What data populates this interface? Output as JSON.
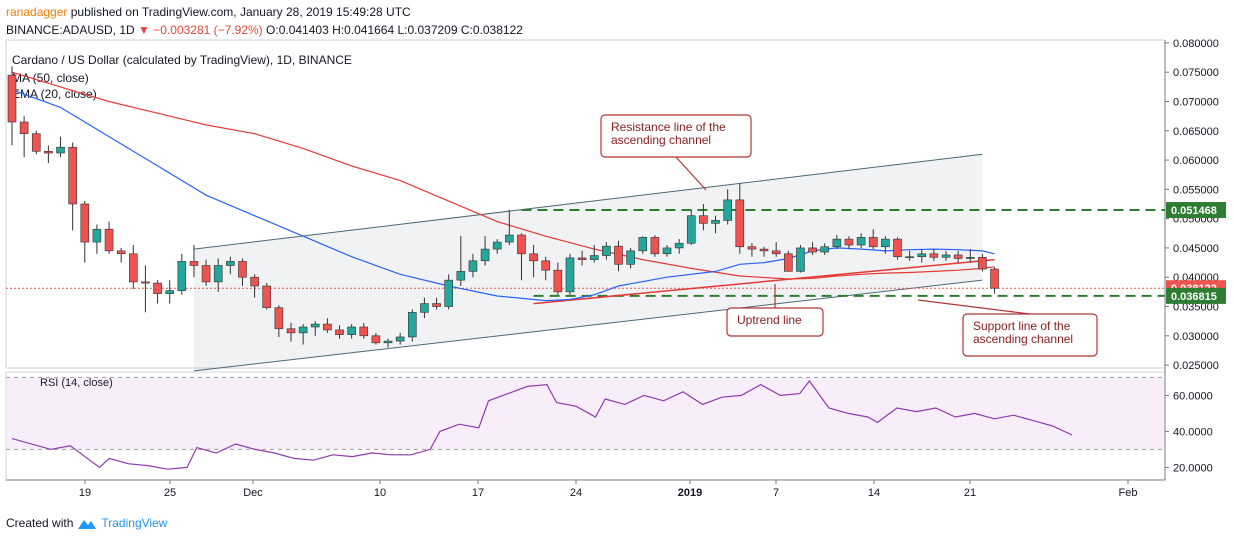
{
  "header": {
    "publisher_user": "ranadagger",
    "publisher_rest": " published on TradingView.com, January 28, 2019 15:49:28 UTC",
    "symbol": "BINANCE:ADAUSD, 1D",
    "last": "0.038122",
    "change": "▼ −0.003281 (−7.92%)",
    "ohlc": "O:0.041403 H:0.041664 L:0.037209 C:0.038122"
  },
  "legend": {
    "title": "Cardano / US Dollar (calculated by TradingView), 1D, BINANCE",
    "ma": "MA (50, close)",
    "ema": "EMA (20, close)",
    "rsi": "RSI (14, close)"
  },
  "annotations": {
    "resistance": [
      "Resistance line of the",
      "ascending channel"
    ],
    "uptrend": "Uptrend line",
    "support": [
      "Support line of the",
      "ascending channel"
    ]
  },
  "footer": {
    "created_with": "Created with",
    "brand": "TradingView"
  },
  "colors": {
    "up": "#26a69a",
    "down": "#ef5350",
    "ma50": "#e53935",
    "ema20": "#2962ff",
    "rsi": "#8e3bb0",
    "level_line": "#2e7d32",
    "annotation_border": "#b03636"
  },
  "chart_data": [
    {
      "type": "candlestick",
      "title": "Cardano / US Dollar (calculated by TradingView), 1D, BINANCE",
      "x_ticks": [
        "19",
        "25",
        "Dec",
        "10",
        "17",
        "24",
        "2019",
        "7",
        "14",
        "21",
        "Feb"
      ],
      "y_ticks": [
        "0.025000",
        "0.030000",
        "0.035000",
        "0.040000",
        "0.045000",
        "0.050000",
        "0.055000",
        "0.060000",
        "0.065000",
        "0.070000",
        "0.075000",
        "0.080000"
      ],
      "ylim": [
        0.0245,
        0.0805
      ],
      "price_labels": {
        "last": "0.038122",
        "resistance_level": "0.051468",
        "support_level": "0.036815"
      },
      "levels": {
        "resistance": 0.051468,
        "support": 0.036815,
        "last": 0.038122
      },
      "candles": [
        {
          "o": 0.0745,
          "h": 0.076,
          "l": 0.0625,
          "c": 0.0665
        },
        {
          "o": 0.0665,
          "h": 0.0675,
          "l": 0.0605,
          "c": 0.0645
        },
        {
          "o": 0.0645,
          "h": 0.065,
          "l": 0.061,
          "c": 0.0615
        },
        {
          "o": 0.0615,
          "h": 0.0625,
          "l": 0.0595,
          "c": 0.0612
        },
        {
          "o": 0.0612,
          "h": 0.064,
          "l": 0.0605,
          "c": 0.0622
        },
        {
          "o": 0.0622,
          "h": 0.063,
          "l": 0.048,
          "c": 0.0525
        },
        {
          "o": 0.0525,
          "h": 0.053,
          "l": 0.0425,
          "c": 0.046
        },
        {
          "o": 0.046,
          "h": 0.049,
          "l": 0.044,
          "c": 0.0482
        },
        {
          "o": 0.0482,
          "h": 0.0495,
          "l": 0.044,
          "c": 0.0445
        },
        {
          "o": 0.0445,
          "h": 0.045,
          "l": 0.0425,
          "c": 0.044
        },
        {
          "o": 0.044,
          "h": 0.0455,
          "l": 0.038,
          "c": 0.0392
        },
        {
          "o": 0.0392,
          "h": 0.042,
          "l": 0.034,
          "c": 0.039
        },
        {
          "o": 0.039,
          "h": 0.0395,
          "l": 0.0355,
          "c": 0.0372
        },
        {
          "o": 0.0372,
          "h": 0.0395,
          "l": 0.0355,
          "c": 0.0377
        },
        {
          "o": 0.0377,
          "h": 0.044,
          "l": 0.037,
          "c": 0.0427
        },
        {
          "o": 0.0427,
          "h": 0.0455,
          "l": 0.04,
          "c": 0.042
        },
        {
          "o": 0.042,
          "h": 0.043,
          "l": 0.0385,
          "c": 0.0392
        },
        {
          "o": 0.0392,
          "h": 0.0432,
          "l": 0.0375,
          "c": 0.042
        },
        {
          "o": 0.042,
          "h": 0.0435,
          "l": 0.0405,
          "c": 0.0427
        },
        {
          "o": 0.0427,
          "h": 0.0432,
          "l": 0.0385,
          "c": 0.04
        },
        {
          "o": 0.04,
          "h": 0.0405,
          "l": 0.0365,
          "c": 0.0385
        },
        {
          "o": 0.0385,
          "h": 0.039,
          "l": 0.0345,
          "c": 0.0348
        },
        {
          "o": 0.0348,
          "h": 0.0352,
          "l": 0.0298,
          "c": 0.0312
        },
        {
          "o": 0.0312,
          "h": 0.0322,
          "l": 0.029,
          "c": 0.0305
        },
        {
          "o": 0.0305,
          "h": 0.032,
          "l": 0.0285,
          "c": 0.0315
        },
        {
          "o": 0.0315,
          "h": 0.0325,
          "l": 0.03,
          "c": 0.032
        },
        {
          "o": 0.032,
          "h": 0.033,
          "l": 0.0305,
          "c": 0.031
        },
        {
          "o": 0.031,
          "h": 0.0318,
          "l": 0.0295,
          "c": 0.0302
        },
        {
          "o": 0.0302,
          "h": 0.032,
          "l": 0.0295,
          "c": 0.0315
        },
        {
          "o": 0.0315,
          "h": 0.0322,
          "l": 0.0295,
          "c": 0.03
        },
        {
          "o": 0.03,
          "h": 0.0305,
          "l": 0.0285,
          "c": 0.0288
        },
        {
          "o": 0.0288,
          "h": 0.0295,
          "l": 0.028,
          "c": 0.0291
        },
        {
          "o": 0.0291,
          "h": 0.0305,
          "l": 0.0285,
          "c": 0.0298
        },
        {
          "o": 0.0298,
          "h": 0.0345,
          "l": 0.029,
          "c": 0.034
        },
        {
          "o": 0.034,
          "h": 0.0365,
          "l": 0.033,
          "c": 0.0355
        },
        {
          "o": 0.0355,
          "h": 0.0365,
          "l": 0.0345,
          "c": 0.035
        },
        {
          "o": 0.035,
          "h": 0.0405,
          "l": 0.0345,
          "c": 0.0395
        },
        {
          "o": 0.0395,
          "h": 0.047,
          "l": 0.0385,
          "c": 0.041
        },
        {
          "o": 0.041,
          "h": 0.044,
          "l": 0.04,
          "c": 0.0428
        },
        {
          "o": 0.0428,
          "h": 0.047,
          "l": 0.042,
          "c": 0.0448
        },
        {
          "o": 0.0448,
          "h": 0.0465,
          "l": 0.044,
          "c": 0.046
        },
        {
          "o": 0.046,
          "h": 0.0515,
          "l": 0.0455,
          "c": 0.0472
        },
        {
          "o": 0.0472,
          "h": 0.0475,
          "l": 0.0395,
          "c": 0.044
        },
        {
          "o": 0.044,
          "h": 0.0455,
          "l": 0.04,
          "c": 0.0428
        },
        {
          "o": 0.0428,
          "h": 0.0435,
          "l": 0.0395,
          "c": 0.0412
        },
        {
          "o": 0.0412,
          "h": 0.0425,
          "l": 0.037,
          "c": 0.0375
        },
        {
          "o": 0.0375,
          "h": 0.044,
          "l": 0.037,
          "c": 0.0433
        },
        {
          "o": 0.0433,
          "h": 0.0445,
          "l": 0.042,
          "c": 0.043
        },
        {
          "o": 0.043,
          "h": 0.0455,
          "l": 0.0425,
          "c": 0.0437
        },
        {
          "o": 0.0437,
          "h": 0.046,
          "l": 0.043,
          "c": 0.0453
        },
        {
          "o": 0.0453,
          "h": 0.0462,
          "l": 0.041,
          "c": 0.0422
        },
        {
          "o": 0.0422,
          "h": 0.045,
          "l": 0.0415,
          "c": 0.0445
        },
        {
          "o": 0.0445,
          "h": 0.047,
          "l": 0.044,
          "c": 0.0468
        },
        {
          "o": 0.0468,
          "h": 0.0472,
          "l": 0.0435,
          "c": 0.044
        },
        {
          "o": 0.044,
          "h": 0.0455,
          "l": 0.0435,
          "c": 0.045
        },
        {
          "o": 0.045,
          "h": 0.0465,
          "l": 0.044,
          "c": 0.0458
        },
        {
          "o": 0.0458,
          "h": 0.0515,
          "l": 0.0455,
          "c": 0.0505
        },
        {
          "o": 0.0505,
          "h": 0.0525,
          "l": 0.048,
          "c": 0.0492
        },
        {
          "o": 0.0492,
          "h": 0.0505,
          "l": 0.0475,
          "c": 0.0497
        },
        {
          "o": 0.0497,
          "h": 0.055,
          "l": 0.049,
          "c": 0.0532
        },
        {
          "o": 0.0532,
          "h": 0.056,
          "l": 0.044,
          "c": 0.0452
        },
        {
          "o": 0.0452,
          "h": 0.0458,
          "l": 0.0435,
          "c": 0.0448
        },
        {
          "o": 0.0448,
          "h": 0.0452,
          "l": 0.0435,
          "c": 0.0445
        },
        {
          "o": 0.0445,
          "h": 0.046,
          "l": 0.0435,
          "c": 0.044
        },
        {
          "o": 0.044,
          "h": 0.0445,
          "l": 0.041,
          "c": 0.041
        },
        {
          "o": 0.041,
          "h": 0.0455,
          "l": 0.0408,
          "c": 0.045
        },
        {
          "o": 0.045,
          "h": 0.046,
          "l": 0.0438,
          "c": 0.0443
        },
        {
          "o": 0.0443,
          "h": 0.0458,
          "l": 0.0438,
          "c": 0.0452
        },
        {
          "o": 0.0452,
          "h": 0.0472,
          "l": 0.0448,
          "c": 0.0465
        },
        {
          "o": 0.0465,
          "h": 0.047,
          "l": 0.0448,
          "c": 0.0455
        },
        {
          "o": 0.0455,
          "h": 0.0475,
          "l": 0.045,
          "c": 0.0468
        },
        {
          "o": 0.0468,
          "h": 0.0482,
          "l": 0.0448,
          "c": 0.0452
        },
        {
          "o": 0.0452,
          "h": 0.047,
          "l": 0.044,
          "c": 0.0465
        },
        {
          "o": 0.0465,
          "h": 0.0468,
          "l": 0.043,
          "c": 0.0435
        },
        {
          "o": 0.0435,
          "h": 0.0445,
          "l": 0.0428,
          "c": 0.0435
        },
        {
          "o": 0.0435,
          "h": 0.0448,
          "l": 0.0425,
          "c": 0.044
        },
        {
          "o": 0.044,
          "h": 0.0448,
          "l": 0.0428,
          "c": 0.0434
        },
        {
          "o": 0.0434,
          "h": 0.0445,
          "l": 0.0428,
          "c": 0.0438
        },
        {
          "o": 0.0438,
          "h": 0.0445,
          "l": 0.0425,
          "c": 0.0432
        },
        {
          "o": 0.0432,
          "h": 0.0448,
          "l": 0.0425,
          "c": 0.0434
        },
        {
          "o": 0.0434,
          "h": 0.044,
          "l": 0.041,
          "c": 0.0414
        },
        {
          "o": 0.041403,
          "h": 0.041664,
          "l": 0.037209,
          "c": 0.038122
        }
      ],
      "ma50": [
        [
          0,
          0.075
        ],
        [
          4,
          0.0725
        ],
        [
          8,
          0.07
        ],
        [
          12,
          0.068
        ],
        [
          16,
          0.066
        ],
        [
          20,
          0.0645
        ],
        [
          24,
          0.062
        ],
        [
          28,
          0.059
        ],
        [
          32,
          0.0565
        ],
        [
          36,
          0.053
        ],
        [
          40,
          0.0495
        ],
        [
          44,
          0.047
        ],
        [
          48,
          0.0448
        ],
        [
          52,
          0.043
        ],
        [
          56,
          0.0415
        ],
        [
          60,
          0.0402
        ],
        [
          64,
          0.0397
        ],
        [
          66,
          0.0398
        ],
        [
          68,
          0.0402
        ],
        [
          70,
          0.0405
        ],
        [
          72,
          0.0407
        ],
        [
          74,
          0.0408
        ],
        [
          76,
          0.041
        ],
        [
          78,
          0.0412
        ],
        [
          80,
          0.0415
        ],
        [
          81,
          0.0418
        ]
      ],
      "ema20": [
        [
          0,
          0.072
        ],
        [
          4,
          0.069
        ],
        [
          8,
          0.064
        ],
        [
          12,
          0.059
        ],
        [
          16,
          0.054
        ],
        [
          20,
          0.0505
        ],
        [
          24,
          0.047
        ],
        [
          28,
          0.0435
        ],
        [
          32,
          0.0405
        ],
        [
          36,
          0.0385
        ],
        [
          40,
          0.0368
        ],
        [
          44,
          0.036
        ],
        [
          46,
          0.0362
        ],
        [
          48,
          0.037
        ],
        [
          50,
          0.0385
        ],
        [
          54,
          0.04
        ],
        [
          58,
          0.041
        ],
        [
          60,
          0.0422
        ],
        [
          62,
          0.0425
        ],
        [
          64,
          0.0432
        ],
        [
          66,
          0.0445
        ],
        [
          68,
          0.045
        ],
        [
          70,
          0.0448
        ],
        [
          72,
          0.0445
        ],
        [
          74,
          0.0447
        ],
        [
          76,
          0.0448
        ],
        [
          78,
          0.0447
        ],
        [
          80,
          0.0445
        ],
        [
          81,
          0.044
        ]
      ],
      "channel": {
        "upper": [
          [
            15,
            0.0448
          ],
          [
            80,
            0.061
          ]
        ],
        "lower": [
          [
            15,
            0.024
          ],
          [
            80,
            0.0395
          ]
        ]
      },
      "uptrend": [
        [
          43,
          0.0355
        ],
        [
          81,
          0.043
        ]
      ]
    },
    {
      "type": "line",
      "title": "RSI (14, close)",
      "y_ticks": [
        "20.0000",
        "40.0000",
        "60.0000"
      ],
      "ylim": [
        13,
        73
      ],
      "bands": [
        30,
        70
      ],
      "values": [
        [
          0,
          36
        ],
        [
          4,
          30
        ],
        [
          6,
          32
        ],
        [
          8,
          24
        ],
        [
          9,
          20
        ],
        [
          10,
          25
        ],
        [
          12,
          22
        ],
        [
          14,
          21
        ],
        [
          16,
          19
        ],
        [
          18,
          20
        ],
        [
          19,
          31
        ],
        [
          21,
          28
        ],
        [
          23,
          33
        ],
        [
          25,
          30
        ],
        [
          27,
          28
        ],
        [
          29,
          25
        ],
        [
          31,
          24
        ],
        [
          33,
          27
        ],
        [
          35,
          26
        ],
        [
          37,
          28
        ],
        [
          39,
          27
        ],
        [
          41,
          27
        ],
        [
          43,
          30
        ],
        [
          44,
          40
        ],
        [
          46,
          44
        ],
        [
          48,
          42
        ],
        [
          49,
          57
        ],
        [
          51,
          61
        ],
        [
          53,
          65
        ],
        [
          55,
          66
        ],
        [
          56,
          56
        ],
        [
          58,
          54
        ],
        [
          60,
          48
        ],
        [
          61,
          58
        ],
        [
          63,
          55
        ],
        [
          65,
          60
        ],
        [
          67,
          57
        ],
        [
          69,
          62
        ],
        [
          71,
          55
        ],
        [
          73,
          59
        ],
        [
          75,
          60
        ],
        [
          77,
          66
        ],
        [
          79,
          60
        ],
        [
          81,
          61
        ],
        [
          82,
          68
        ],
        [
          84,
          53
        ],
        [
          86,
          50
        ],
        [
          88,
          48
        ],
        [
          89,
          45
        ],
        [
          91,
          53
        ],
        [
          93,
          51
        ],
        [
          95,
          53
        ],
        [
          97,
          48
        ],
        [
          99,
          50
        ],
        [
          101,
          47
        ],
        [
          103,
          49
        ],
        [
          105,
          46
        ],
        [
          107,
          43
        ],
        [
          109,
          38
        ]
      ],
      "values_axis": "candle-index"
    }
  ]
}
